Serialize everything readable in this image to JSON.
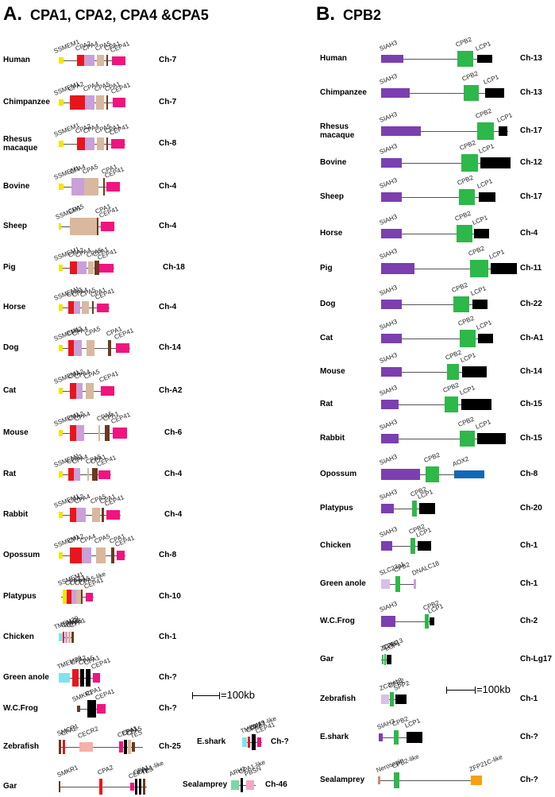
{
  "colors": {
    "SLC4A2": "#f2e600",
    "CPA2": "#e8161c",
    "CPA4": "#c9a0d8",
    "CPA5": "#d8b89e",
    "CPA1": "#6b3a1f",
    "CEP41": "#f0147f",
    "TMEM29": "#7fe3ef",
    "black": "#000000",
    "SIAH3": "#7b3fb0",
    "CPB2": "#2db84a",
    "LCP1": "#000000",
    "AOX2": "#1167b9",
    "SLC23a1": "#d8c0e8",
    "DNALC18": "#c9a0d8",
    "Nerosepin": "#c98b6a",
    "ZFP21C": "#f5a015",
    "CECR2": "#f6b0a8",
    "ARH2": "#7fd6a8",
    "PBSN": "#f4a8c8",
    "SMCR1": "#6b3a1f"
  },
  "panelA": {
    "letter": "A.",
    "title": "CPA1, CPA2, CPA4 &CPA5",
    "rows": [
      {
        "species": "Human",
        "ch": "Ch-7"
      },
      {
        "species": "Chimpanzee",
        "ch": "Ch-7"
      },
      {
        "species": "Rhesus macaque",
        "ch": "Ch-8"
      },
      {
        "species": "Bovine",
        "ch": "Ch-4"
      },
      {
        "species": "Sheep",
        "ch": "Ch-4"
      },
      {
        "species": "Pig",
        "ch": "Ch-18"
      },
      {
        "species": "Horse",
        "ch": "Ch-4"
      },
      {
        "species": "Dog",
        "ch": "Ch-14"
      },
      {
        "species": "Cat",
        "ch": "Ch-A2"
      },
      {
        "species": "Mouse",
        "ch": "Ch-6"
      },
      {
        "species": "Rat",
        "ch": "Ch-4"
      },
      {
        "species": "Rabbit",
        "ch": "Ch-4"
      },
      {
        "species": "Opossum",
        "ch": "Ch-8"
      },
      {
        "species": "Platypus",
        "ch": "Ch-10"
      },
      {
        "species": "Chicken",
        "ch": "Ch-1"
      },
      {
        "species": "Green anole",
        "ch": "Ch-?"
      },
      {
        "species": "W.C.Frog",
        "ch": "Ch-?"
      },
      {
        "species": "Zebrafish",
        "ch": "Ch-25"
      },
      {
        "species": "Gar",
        "ch": ""
      }
    ],
    "extra": [
      {
        "species": "E.shark",
        "ch": "Ch-?"
      },
      {
        "species": "Sealamprey",
        "ch": "Ch-46"
      }
    ],
    "scale": "=100kb"
  },
  "panelB": {
    "letter": "B.",
    "title": "CPB2",
    "rows": [
      {
        "species": "Human",
        "ch": "Ch-13"
      },
      {
        "species": "Chimpanzee",
        "ch": "Ch-13"
      },
      {
        "species": "Rhesus macaque",
        "ch": "Ch-17"
      },
      {
        "species": "Bovine",
        "ch": "Ch-12"
      },
      {
        "species": "Sheep",
        "ch": "Ch-17"
      },
      {
        "species": "Horse",
        "ch": "Ch-4"
      },
      {
        "species": "Pig",
        "ch": "Ch-11"
      },
      {
        "species": "Dog",
        "ch": "Ch-22"
      },
      {
        "species": "Cat",
        "ch": "Ch-A1"
      },
      {
        "species": "Mouse",
        "ch": "Ch-14"
      },
      {
        "species": "Rat",
        "ch": "Ch-15"
      },
      {
        "species": "Rabbit",
        "ch": "Ch-15"
      },
      {
        "species": "Opossum",
        "ch": "Ch-8"
      },
      {
        "species": "Platypus",
        "ch": "Ch-20"
      },
      {
        "species": "Chicken",
        "ch": "Ch-1"
      },
      {
        "species": "Green anole",
        "ch": "Ch-1"
      },
      {
        "species": "W.C.Frog",
        "ch": "Ch-2"
      },
      {
        "species": "Gar",
        "ch": "Ch-Lg17"
      },
      {
        "species": "Zebrafish",
        "ch": "Ch-1"
      },
      {
        "species": "E.shark",
        "ch": "Ch-?"
      },
      {
        "species": "Sealamprey",
        "ch": "Ch-?"
      }
    ],
    "scale": "=100kb"
  },
  "gene_labels": {
    "SSMEM1": "SSMEM1",
    "CPA2": "CPA2",
    "CPA4": "CPA4",
    "CPA5": "CPA5",
    "CPA1": "CPA1",
    "CEP41": "CEP41",
    "TMEM29": "TMEM29",
    "CPA5like": "CPA5-like",
    "SMKR1": "SMKR1",
    "SMCR1": "SMCR1",
    "CECR2": "CECR2",
    "TES": "TES",
    "CPA1like": "CPA1-like",
    "ARH2": "ARH2",
    "PBSN": "PBSN",
    "SIAH3": "SIAH3",
    "CPB2": "CPB2",
    "LCP1": "LCP1",
    "AOX2": "AOX2",
    "SLC23a1": "SLC23a1",
    "DNALC18": "DNALC18",
    "ZC3H13": "ZC3H13",
    "SPP2": "SPP2",
    "Nerosepin": "Nerosepin",
    "CPB2like": "CPB2-like",
    "ZFP21Clike": "ZFP21C-like"
  }
}
